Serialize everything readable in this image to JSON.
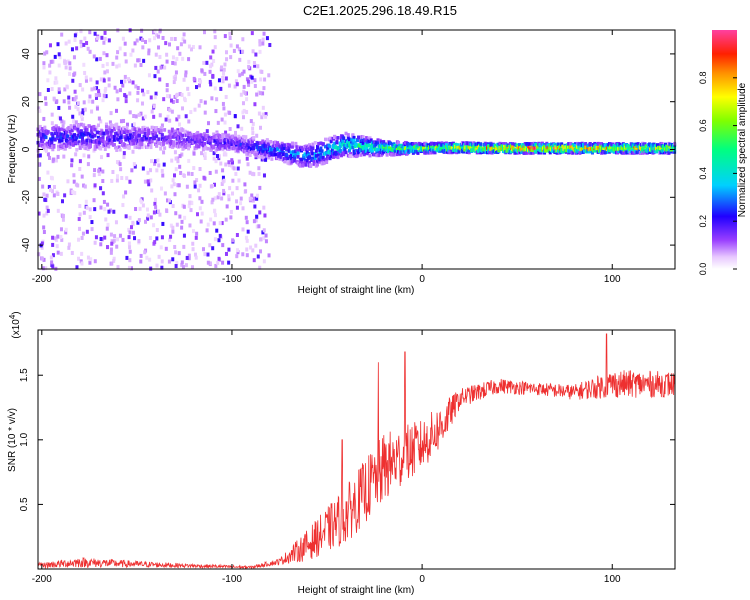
{
  "title": "C2E1.2025.296.18.49.R15",
  "chart_data": [
    {
      "type": "heatmap",
      "xlabel": "Height of straight line (km)",
      "ylabel": "Frequency (Hz)",
      "xlim": [
        -202,
        133
      ],
      "ylim": [
        -50,
        50
      ],
      "xticks": [
        -200,
        -100,
        0,
        100
      ],
      "yticks": [
        -40,
        -20,
        0,
        20,
        40
      ],
      "colorbar": {
        "label": "Normalized spectral amplitude",
        "range": [
          0,
          1
        ],
        "ticks": [
          "0.0",
          "0.2",
          "0.4",
          "0.6",
          "0.8"
        ]
      },
      "trace": [
        {
          "x": -200,
          "f": 5.0,
          "spread": 5,
          "amp": 0.25
        },
        {
          "x": -180,
          "f": 5.5,
          "spread": 6,
          "amp": 0.25
        },
        {
          "x": -160,
          "f": 5.0,
          "spread": 6,
          "amp": 0.22
        },
        {
          "x": -140,
          "f": 5.0,
          "spread": 5,
          "amp": 0.2
        },
        {
          "x": -120,
          "f": 4.0,
          "spread": 5,
          "amp": 0.18
        },
        {
          "x": -100,
          "f": 2.5,
          "spread": 4,
          "amp": 0.2
        },
        {
          "x": -80,
          "f": 0.0,
          "spread": 4,
          "amp": 0.3
        },
        {
          "x": -60,
          "f": -3.0,
          "spread": 5,
          "amp": 0.35
        },
        {
          "x": -40,
          "f": 2.0,
          "spread": 5,
          "amp": 0.45
        },
        {
          "x": -20,
          "f": 0.5,
          "spread": 3,
          "amp": 0.55
        },
        {
          "x": 0,
          "f": 0.5,
          "spread": 2,
          "amp": 0.65
        },
        {
          "x": 20,
          "f": 0.8,
          "spread": 2,
          "amp": 0.75
        },
        {
          "x": 40,
          "f": 0.5,
          "spread": 2,
          "amp": 0.85
        },
        {
          "x": 60,
          "f": 0.5,
          "spread": 2,
          "amp": 0.92
        },
        {
          "x": 80,
          "f": 0.5,
          "spread": 2,
          "amp": 0.85
        },
        {
          "x": 100,
          "f": 0.5,
          "spread": 2,
          "amp": 0.8
        },
        {
          "x": 120,
          "f": 0.5,
          "spread": 2,
          "amp": 0.75
        },
        {
          "x": 133,
          "f": 0.5,
          "spread": 2,
          "amp": 0.7
        }
      ],
      "noise_region": {
        "x_range": [
          -202,
          -80
        ],
        "f_range": [
          -50,
          50
        ],
        "amp": 0.15
      }
    },
    {
      "type": "line",
      "xlabel": "Height of straight line (km)",
      "ylabel": "SNR (10 * v/v)",
      "scale_label": "(x10",
      "scale_exp": "4",
      "xlim": [
        -202,
        133
      ],
      "ylim": [
        0,
        1.85
      ],
      "xticks": [
        -200,
        -100,
        0,
        100
      ],
      "yticks": [
        "0.5",
        "1.0",
        "1.5"
      ],
      "series": [
        {
          "name": "SNR",
          "color": "#ee3030",
          "envelope": [
            {
              "x": -202,
              "base": 0.02,
              "amp": 0.04
            },
            {
              "x": -180,
              "base": 0.04,
              "amp": 0.08
            },
            {
              "x": -150,
              "base": 0.03,
              "amp": 0.05
            },
            {
              "x": -120,
              "base": 0.02,
              "amp": 0.03
            },
            {
              "x": -90,
              "base": 0.01,
              "amp": 0.02
            },
            {
              "x": -75,
              "base": 0.05,
              "amp": 0.05
            },
            {
              "x": -60,
              "base": 0.15,
              "amp": 0.25
            },
            {
              "x": -40,
              "base": 0.35,
              "amp": 0.45
            },
            {
              "x": -20,
              "base": 0.7,
              "amp": 0.55
            },
            {
              "x": 0,
              "base": 0.9,
              "amp": 0.4
            },
            {
              "x": 10,
              "base": 1.05,
              "amp": 0.35
            },
            {
              "x": 20,
              "base": 1.3,
              "amp": 0.15
            },
            {
              "x": 40,
              "base": 1.4,
              "amp": 0.12
            },
            {
              "x": 60,
              "base": 1.38,
              "amp": 0.1
            },
            {
              "x": 80,
              "base": 1.35,
              "amp": 0.12
            },
            {
              "x": 100,
              "base": 1.4,
              "amp": 0.22
            },
            {
              "x": 133,
              "base": 1.4,
              "amp": 0.2
            }
          ],
          "peaks": [
            {
              "x": 97,
              "y": 1.82
            },
            {
              "x": -9,
              "y": 1.68
            },
            {
              "x": -23,
              "y": 1.6
            },
            {
              "x": -42,
              "y": 1.0
            }
          ]
        }
      ]
    }
  ]
}
